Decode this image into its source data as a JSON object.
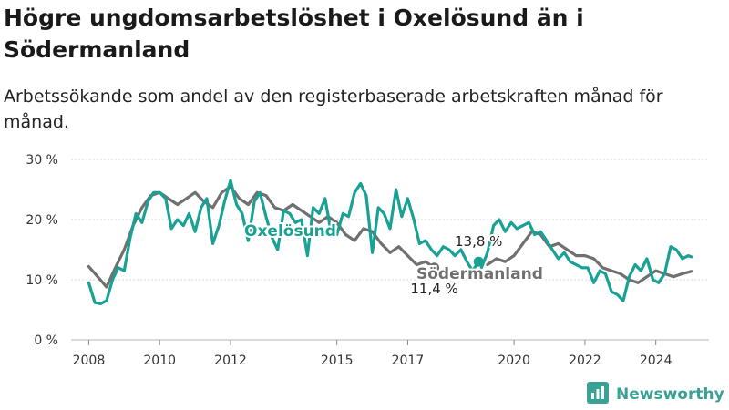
{
  "title": "Högre ungdomsarbetslöshet i Oxelösund än i Södermanland",
  "subtitle": "Arbetssökande som andel av den registerbaserade arbetskraften månad för månad.",
  "brand": {
    "name": "Newsworthy",
    "icon": "bar-chart-logo-icon"
  },
  "chart_data": {
    "type": "line",
    "ylim": [
      0,
      30
    ],
    "yticks": [
      0,
      10,
      20,
      30
    ],
    "ytick_labels": [
      "0 %",
      "10 %",
      "20 %",
      "30 %"
    ],
    "xlim": [
      2007.5,
      2025.5
    ],
    "xticks": [
      2008,
      2010,
      2012,
      2015,
      2017,
      2020,
      2022,
      2024
    ],
    "xtick_labels": [
      "2008",
      "2010",
      "2012",
      "2015",
      "2017",
      "2020",
      "2022",
      "2024"
    ],
    "grid": true,
    "legend": "inline labels",
    "series": [
      {
        "name": "Södermanland",
        "color": "#707070",
        "end_label": "11,4 %",
        "x": [
          2008.0,
          2008.25,
          2008.5,
          2008.75,
          2009.0,
          2009.25,
          2009.5,
          2009.75,
          2010.0,
          2010.25,
          2010.5,
          2010.75,
          2011.0,
          2011.25,
          2011.5,
          2011.75,
          2012.0,
          2012.25,
          2012.5,
          2012.75,
          2013.0,
          2013.25,
          2013.5,
          2013.75,
          2014.0,
          2014.25,
          2014.5,
          2014.75,
          2015.0,
          2015.25,
          2015.5,
          2015.75,
          2016.0,
          2016.25,
          2016.5,
          2016.75,
          2017.0,
          2017.25,
          2017.5,
          2017.75
        ],
        "y": [
          12.2,
          10.5,
          8.8,
          12.0,
          15.0,
          19.0,
          22.0,
          24.0,
          24.5,
          23.5,
          22.5,
          23.5,
          24.5,
          23.0,
          22.0,
          24.5,
          25.5,
          23.5,
          22.5,
          24.5,
          24.0,
          22.0,
          21.5,
          22.5,
          21.5,
          20.5,
          19.5,
          20.5,
          19.5,
          17.5,
          16.5,
          18.5,
          18.0,
          16.0,
          14.5,
          15.5,
          14.0,
          12.5,
          13.0,
          12.0
        ]
      },
      {
        "name": "Södermanland",
        "color": "#707070",
        "x": [
          2019.25,
          2019.5,
          2019.75,
          2020.0,
          2020.25,
          2020.5,
          2020.75,
          2021.0,
          2021.25,
          2021.5,
          2021.75,
          2022.0,
          2022.25,
          2022.5,
          2022.75,
          2023.0,
          2023.25,
          2023.5,
          2023.75,
          2024.0,
          2024.25,
          2024.5,
          2024.75,
          2025.0
        ],
        "y": [
          12.5,
          13.5,
          13.0,
          14.0,
          16.0,
          18.0,
          17.5,
          15.5,
          16.0,
          15.0,
          14.0,
          14.0,
          13.5,
          12.0,
          11.5,
          11.0,
          10.0,
          9.5,
          10.5,
          11.5,
          11.0,
          10.5,
          11.0,
          11.4
        ]
      },
      {
        "name": "Oxelösund",
        "color": "#1aa196",
        "end_label": "13,8 %",
        "x": [
          2008.0,
          2008.17,
          2008.33,
          2008.5,
          2008.67,
          2008.83,
          2009.0,
          2009.17,
          2009.33,
          2009.5,
          2009.67,
          2009.83,
          2010.0,
          2010.17,
          2010.33,
          2010.5,
          2010.67,
          2010.83,
          2011.0,
          2011.17,
          2011.33,
          2011.5,
          2011.67,
          2011.83,
          2012.0,
          2012.17,
          2012.33,
          2012.5,
          2012.67,
          2012.83,
          2013.0,
          2013.17,
          2013.33,
          2013.5,
          2013.67,
          2013.83,
          2014.0,
          2014.17,
          2014.33,
          2014.5,
          2014.67,
          2014.83,
          2015.0,
          2015.17,
          2015.33,
          2015.5,
          2015.67,
          2015.83,
          2016.0,
          2016.17,
          2016.33,
          2016.5,
          2016.67,
          2016.83,
          2017.0,
          2017.17,
          2017.33,
          2017.5,
          2017.67,
          2017.83,
          2018.0,
          2018.17,
          2018.33,
          2018.5,
          2018.67,
          2018.83,
          2019.0
        ],
        "y": [
          9.5,
          6.2,
          6.0,
          6.5,
          10.0,
          12.0,
          11.5,
          17.0,
          21.0,
          19.5,
          23.0,
          24.5,
          24.5,
          23.5,
          18.5,
          20.0,
          19.0,
          21.0,
          18.0,
          22.0,
          23.5,
          16.0,
          19.0,
          23.0,
          26.5,
          22.5,
          21.0,
          16.5,
          23.0,
          24.5,
          20.5,
          17.0,
          15.0,
          21.5,
          21.0,
          19.5,
          20.0,
          14.0,
          22.0,
          21.0,
          23.5,
          18.0,
          17.5,
          21.0,
          20.5,
          24.5,
          26.0,
          24.0,
          14.5,
          22.0,
          21.0,
          18.5,
          25.0,
          20.5,
          23.5,
          20.0,
          16.0,
          16.5,
          15.0,
          14.0,
          15.5,
          15.0,
          14.0,
          15.0,
          13.0,
          11.5,
          13.0
        ]
      },
      {
        "name": "Oxelösund",
        "color": "#1aa196",
        "x": [
          2019.08,
          2019.25,
          2019.42,
          2019.58,
          2019.75,
          2019.92,
          2020.08,
          2020.25,
          2020.42,
          2020.58,
          2020.75,
          2020.92,
          2021.08,
          2021.25,
          2021.42,
          2021.58,
          2021.75,
          2021.92,
          2022.08,
          2022.25,
          2022.42,
          2022.58,
          2022.75,
          2022.92,
          2023.08,
          2023.25,
          2023.42,
          2023.58,
          2023.75,
          2023.92,
          2024.08,
          2024.25,
          2024.42,
          2024.58,
          2024.75,
          2024.92,
          2025.0
        ],
        "y": [
          12.0,
          14.5,
          19.0,
          20.0,
          18.0,
          19.5,
          18.5,
          19.0,
          19.5,
          17.5,
          18.0,
          16.5,
          15.0,
          13.5,
          14.5,
          13.0,
          12.5,
          12.0,
          12.0,
          9.5,
          11.5,
          11.0,
          8.0,
          7.5,
          6.5,
          10.5,
          12.5,
          11.5,
          13.5,
          10.0,
          9.5,
          11.0,
          15.5,
          15.0,
          13.5,
          14.0,
          13.8
        ]
      }
    ],
    "labels": [
      {
        "text": "Oxelösund",
        "color": "#1aa196"
      },
      {
        "text": "Södermanland",
        "color": "#707070"
      }
    ]
  }
}
